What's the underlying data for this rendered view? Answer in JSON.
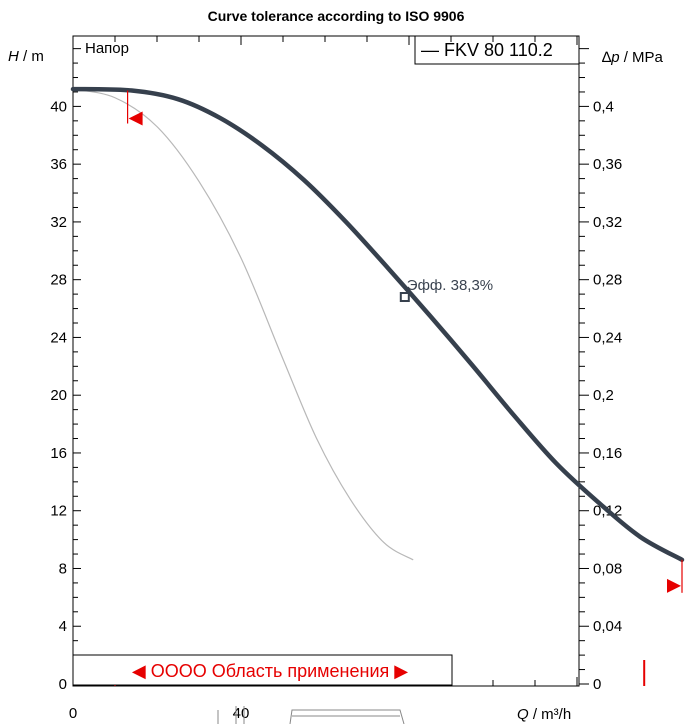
{
  "chart_data": {
    "type": "line",
    "title": "Curve tolerance according to ISO 9906",
    "ylabel_italic": "H",
    "ylabel_unit": " / m",
    "y2label_italic": "p",
    "y2label_prefix": "∆",
    "y2label_unit": " / MPa",
    "xlabel_italic": "Q",
    "xlabel_unit": " / m³/h",
    "xlim": [
      0,
      216
    ],
    "ylim": [
      0,
      44
    ],
    "y2lim": [
      0,
      0.44
    ],
    "y_ticks": [
      0,
      4,
      8,
      12,
      16,
      20,
      24,
      28,
      32,
      36,
      40
    ],
    "y2_ticks": [
      {
        "v": 0,
        "label": "0"
      },
      {
        "v": 0.04,
        "label": "0,04"
      },
      {
        "v": 0.08,
        "label": "0,08"
      },
      {
        "v": 0.12,
        "label": "0,12"
      },
      {
        "v": 0.16,
        "label": "0,16"
      },
      {
        "v": 0.2,
        "label": "0,2"
      },
      {
        "v": 0.24,
        "label": "0,24"
      },
      {
        "v": 0.28,
        "label": "0,28"
      },
      {
        "v": 0.32,
        "label": "0,32"
      },
      {
        "v": 0.36,
        "label": "0,36"
      },
      {
        "v": 0.4,
        "label": "0,4"
      }
    ],
    "x_tick_labels": [
      {
        "v": 0,
        "label": "0"
      },
      {
        "v": 40,
        "label": "40"
      }
    ],
    "series": [
      {
        "name": "FKV 80 110.2",
        "role": "head",
        "color": "#36404d",
        "points": [
          [
            0,
            41.2
          ],
          [
            14,
            41.1
          ],
          [
            25,
            40.5
          ],
          [
            35,
            39.2
          ],
          [
            45,
            37.3
          ],
          [
            55,
            34.9
          ],
          [
            65,
            32.0
          ],
          [
            75,
            28.8
          ],
          [
            85,
            25.5
          ],
          [
            95,
            22.1
          ],
          [
            105,
            18.6
          ],
          [
            115,
            15.3
          ],
          [
            125,
            12.6
          ],
          [
            135,
            10.2
          ],
          [
            145,
            8.6
          ]
        ]
      },
      {
        "role": "efficiency",
        "color": "#b8b8b8",
        "points": [
          [
            0,
            41.2
          ],
          [
            10,
            40.6
          ],
          [
            20,
            38.6
          ],
          [
            30,
            34.8
          ],
          [
            40,
            29.5
          ],
          [
            50,
            22.5
          ],
          [
            58,
            17.0
          ],
          [
            66,
            12.8
          ],
          [
            74,
            9.8
          ],
          [
            81,
            8.6
          ]
        ]
      }
    ],
    "annotations": {
      "head_label": "Напор",
      "eff_label": "Эфф.  38,3%",
      "eff_point": [
        79,
        26.8
      ],
      "range_label": "ОООО Область применения",
      "range_start": 10,
      "range_end": 136,
      "tol_left": [
        13,
        41.1
      ],
      "tol_right": [
        145,
        8.6
      ]
    },
    "grid": "ticks-only",
    "legend": "top-right"
  },
  "colors": {
    "range": "#e60000",
    "curve": "#36404d",
    "efficiency": "#b8b8b8"
  }
}
